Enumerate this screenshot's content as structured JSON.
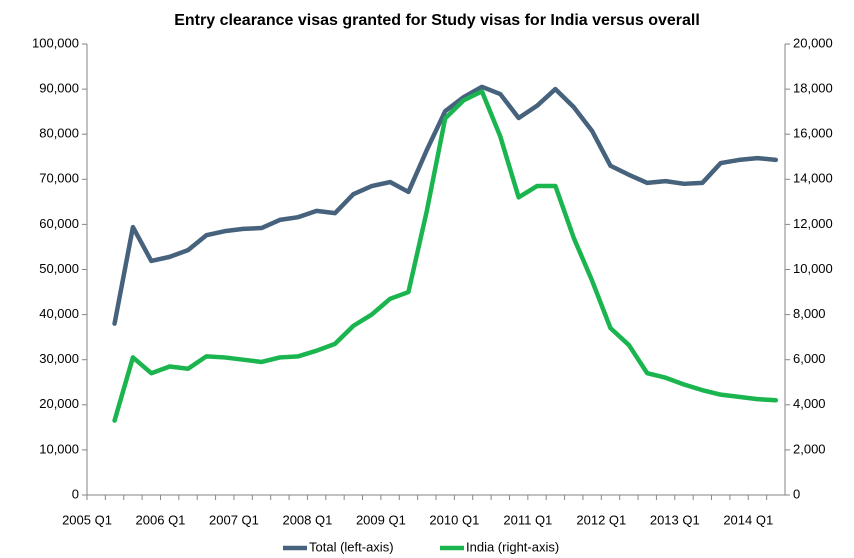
{
  "chart_data": {
    "type": "line",
    "title": "Entry clearance visas granted for Study visas for India versus overall",
    "categories": [
      "2005 Q1",
      null,
      null,
      null,
      "2006 Q1",
      null,
      null,
      null,
      "2007 Q1",
      null,
      null,
      null,
      "2008 Q1",
      null,
      null,
      null,
      "2009 Q1",
      null,
      null,
      null,
      "2010 Q1",
      null,
      null,
      null,
      "2011 Q1",
      null,
      null,
      null,
      "2012 Q1",
      null,
      null,
      null,
      "2013 Q1",
      null,
      null,
      null,
      "2014 Q1",
      null
    ],
    "series": [
      {
        "name": "Total (left-axis)",
        "color": "#46627c",
        "axis": "y",
        "values": [
          null,
          38000,
          59400,
          51900,
          52800,
          54300,
          57600,
          58500,
          59000,
          59200,
          61000,
          61600,
          63000,
          62500,
          66700,
          68500,
          69400,
          67200,
          76500,
          85100,
          88200,
          90500,
          88900,
          83600,
          86300,
          90000,
          86000,
          80700,
          73000,
          71000,
          69200,
          69600,
          69000,
          69200,
          73600,
          74300,
          74700,
          74300
        ]
      },
      {
        "name": "India (right-axis)",
        "color": "#1ab54f",
        "axis": "y2",
        "values": [
          null,
          3300,
          6100,
          5400,
          5700,
          5600,
          6150,
          6100,
          6000,
          5900,
          6100,
          6150,
          6400,
          6700,
          7500,
          8000,
          8700,
          9000,
          12600,
          16700,
          17500,
          17900,
          15900,
          13200,
          13700,
          13700,
          11400,
          9500,
          7400,
          6650,
          5400,
          5200,
          4900,
          4650,
          4450,
          4350,
          4250,
          4200
        ]
      }
    ],
    "ylim": [
      0,
      100000
    ],
    "yticks": [
      0,
      {
        "value": 10000,
        "label": "10,000"
      },
      {
        "value": 20000,
        "label": "20,000"
      },
      {
        "value": 30000,
        "label": "30,000"
      },
      {
        "value": 40000,
        "label": "40,000"
      },
      {
        "value": 50000,
        "label": "50,000"
      },
      {
        "value": 60000,
        "label": "60,000"
      },
      {
        "value": 70000,
        "label": "70,000"
      },
      {
        "value": 80000,
        "label": "80,000"
      },
      {
        "value": 90000,
        "label": "90,000"
      },
      {
        "value": 100000,
        "label": "100,000"
      }
    ],
    "y2lim": [
      0,
      20000
    ],
    "y2ticks": [
      0,
      {
        "value": 2000,
        "label": "2,000"
      },
      {
        "value": 4000,
        "label": "4,000"
      },
      {
        "value": 6000,
        "label": "6,000"
      },
      {
        "value": 8000,
        "label": "8,000"
      },
      {
        "value": 10000,
        "label": "10,000"
      },
      {
        "value": 12000,
        "label": "12,000"
      },
      {
        "value": 14000,
        "label": "14,000"
      },
      {
        "value": 16000,
        "label": "16,000"
      },
      {
        "value": 18000,
        "label": "18,000"
      },
      {
        "value": 20000,
        "label": "20,000"
      }
    ],
    "grid": false,
    "legend": "bottom"
  }
}
